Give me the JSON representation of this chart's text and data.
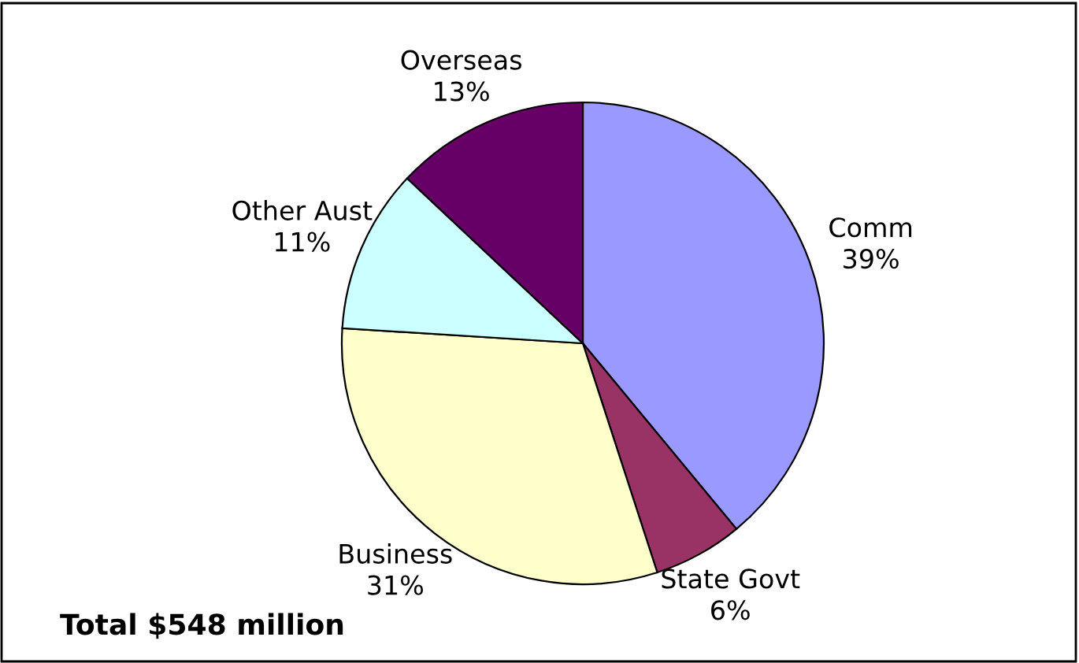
{
  "chart_data": {
    "type": "pie",
    "categories": [
      "Comm",
      "State Govt",
      "Business",
      "Other Aust",
      "Overseas"
    ],
    "values": [
      39,
      6,
      31,
      11,
      13
    ],
    "value_labels": [
      "39%",
      "6%",
      "31%",
      "11%",
      "13%"
    ],
    "colors": [
      "#9999ff",
      "#993366",
      "#ffffcc",
      "#ccffff",
      "#660066"
    ],
    "annotations": [
      "Total $548 million"
    ],
    "legend": false
  }
}
